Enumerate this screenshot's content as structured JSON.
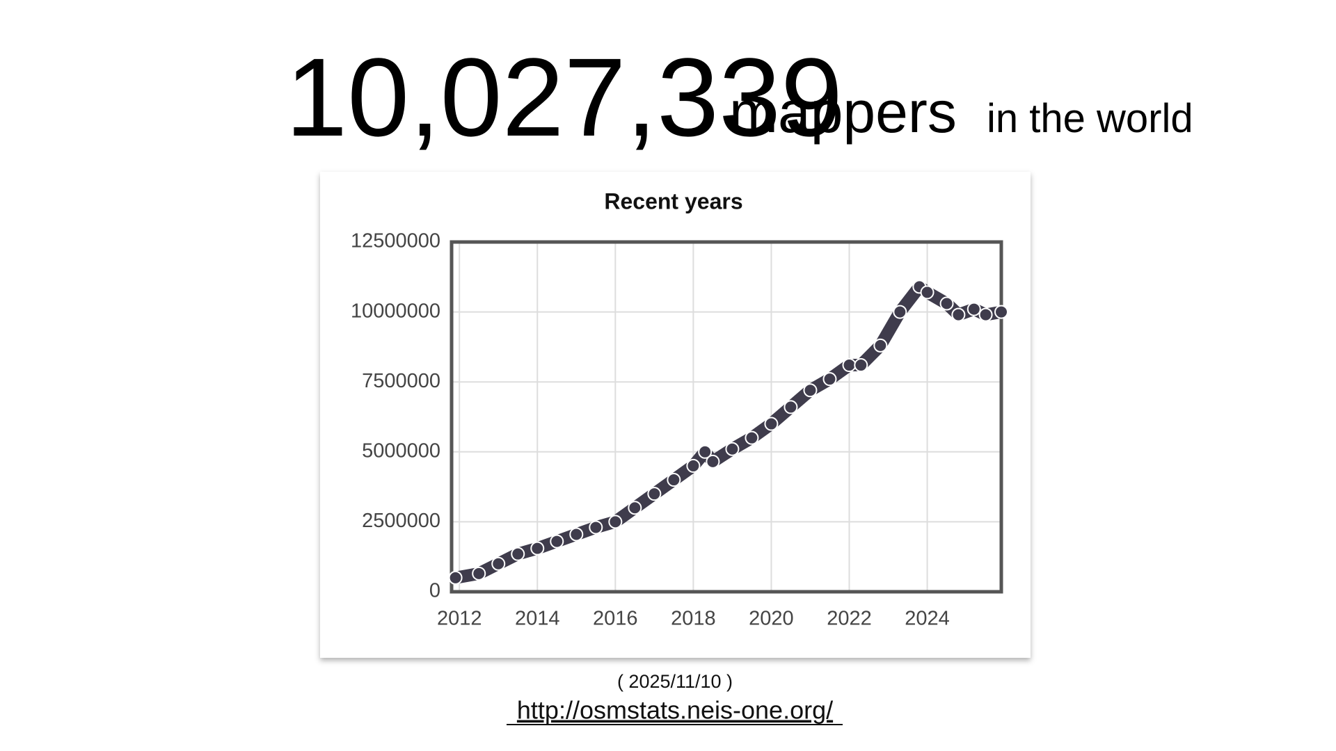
{
  "header": {
    "count": "10,027,339",
    "unit": "mappers",
    "suffix": "in the world"
  },
  "chart_data": {
    "type": "line",
    "title": "Recent years",
    "x": [
      2011.9,
      2012.5,
      2013.0,
      2013.5,
      2014.0,
      2014.5,
      2015.0,
      2015.5,
      2016.0,
      2016.5,
      2017.0,
      2017.5,
      2018.0,
      2018.3,
      2018.5,
      2019.0,
      2019.5,
      2020.0,
      2020.5,
      2021.0,
      2021.5,
      2022.0,
      2022.3,
      2022.8,
      2023.3,
      2023.8,
      2024.0,
      2024.5,
      2024.8,
      2025.2,
      2025.5,
      2025.9
    ],
    "series": [
      {
        "name": "mappers",
        "color": "#3f3c4c",
        "values": [
          500000,
          650000,
          1000000,
          1350000,
          1550000,
          1800000,
          2050000,
          2300000,
          2500000,
          3000000,
          3500000,
          4000000,
          4500000,
          5000000,
          4650000,
          5100000,
          5500000,
          6000000,
          6600000,
          7200000,
          7600000,
          8100000,
          8100000,
          8800000,
          10000000,
          10900000,
          10700000,
          10300000,
          9900000,
          10100000,
          9900000,
          10000000
        ]
      }
    ],
    "xlim": [
      2011.8,
      2025.9
    ],
    "xticks": [
      2012,
      2014,
      2016,
      2018,
      2020,
      2022,
      2024
    ],
    "ylim": [
      0,
      12500000
    ],
    "yticks": [
      0,
      2500000,
      5000000,
      7500000,
      10000000,
      12500000
    ],
    "grid": true
  },
  "footer": {
    "date": "( 2025/11/10 )",
    "link": "http://osmstats.neis-one.org/"
  }
}
